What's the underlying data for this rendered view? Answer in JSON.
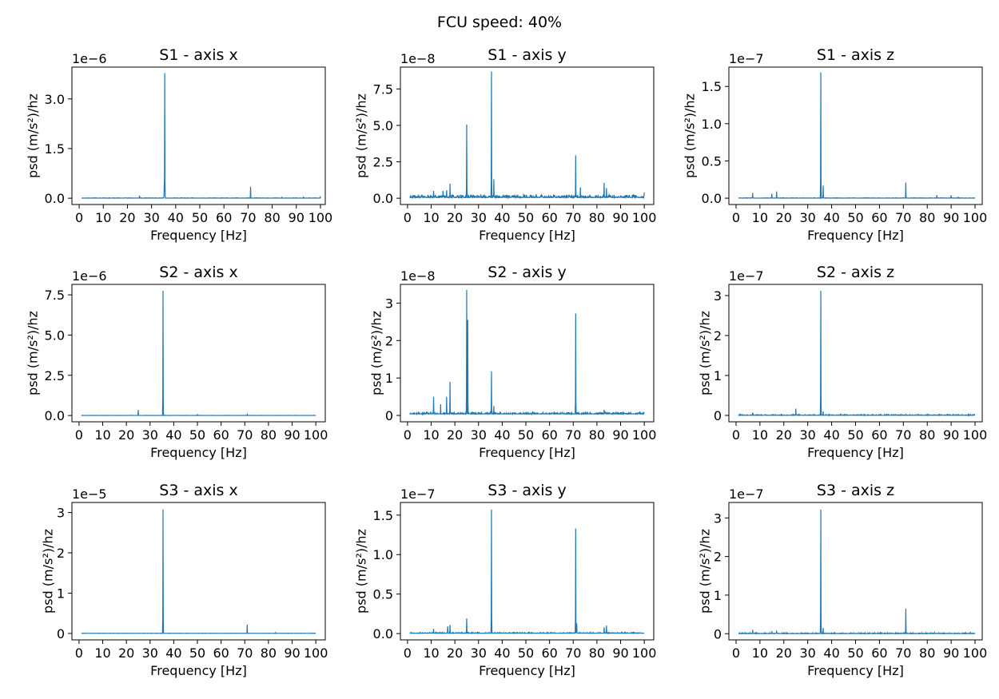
{
  "figure": {
    "suptitle": "FCU speed: 40%"
  },
  "colors": {
    "line": "#1f77b4",
    "axes": "#000000",
    "background": "#ffffff"
  },
  "chart_data": [
    {
      "type": "line",
      "title": "S1 - axis x",
      "xlabel": "Frequency [Hz]",
      "ylabel": "psd (m/s²)/hz",
      "offset_text": "1e−6",
      "xlim": [
        -3,
        102
      ],
      "ylim": [
        -0.19,
        3.96
      ],
      "x_ticks": [
        0,
        10,
        20,
        30,
        40,
        50,
        60,
        70,
        80,
        90,
        100
      ],
      "x_tick_labels": [
        "0",
        "10",
        "20",
        "30",
        "40",
        "50",
        "60",
        "70",
        "80",
        "90",
        "100"
      ],
      "y_ticks": [
        0,
        1.5,
        3.0
      ],
      "y_tick_labels": [
        "0.0",
        "1.5",
        "3.0"
      ],
      "x_range": [
        1,
        100
      ],
      "baseline": 0.003,
      "noise": 0.01,
      "peaks": [
        [
          25,
          0.08
        ],
        [
          35.5,
          3.78
        ],
        [
          35.2,
          0.35
        ],
        [
          71,
          0.35
        ],
        [
          84,
          0.04
        ],
        [
          93,
          0.03
        ],
        [
          100,
          0.06
        ]
      ]
    },
    {
      "type": "line",
      "title": "S1 - axis y",
      "xlabel": "Frequency [Hz]",
      "ylabel": "psd (m/s²)/hz",
      "offset_text": "1e−8",
      "xlim": [
        -3,
        104
      ],
      "ylim": [
        -0.43,
        9.0
      ],
      "x_ticks": [
        0,
        10,
        20,
        30,
        40,
        50,
        60,
        70,
        80,
        90,
        100
      ],
      "x_tick_labels": [
        "0",
        "10",
        "20",
        "30",
        "40",
        "50",
        "60",
        "70",
        "80",
        "90",
        "100"
      ],
      "y_ticks": [
        0,
        2.5,
        5.0,
        7.5
      ],
      "y_tick_labels": [
        "0.0",
        "2.5",
        "5.0",
        "7.5"
      ],
      "x_range": [
        1,
        100
      ],
      "baseline": 0.05,
      "noise": 0.2,
      "peaks": [
        [
          11,
          0.5
        ],
        [
          15,
          0.5
        ],
        [
          16.5,
          0.55
        ],
        [
          18,
          1.0
        ],
        [
          25,
          5.05
        ],
        [
          35.5,
          8.7
        ],
        [
          36.5,
          1.3
        ],
        [
          71,
          2.95
        ],
        [
          73,
          0.75
        ],
        [
          83,
          1.05
        ],
        [
          84,
          0.7
        ],
        [
          100,
          0.4
        ]
      ]
    },
    {
      "type": "line",
      "title": "S1 - axis z",
      "xlabel": "Frequency [Hz]",
      "ylabel": "psd (m/s²)/hz",
      "offset_text": "1e−7",
      "xlim": [
        -3,
        103
      ],
      "ylim": [
        -0.085,
        1.76
      ],
      "x_ticks": [
        0,
        10,
        20,
        30,
        40,
        50,
        60,
        70,
        80,
        90,
        100
      ],
      "x_tick_labels": [
        "0",
        "10",
        "20",
        "30",
        "40",
        "50",
        "60",
        "70",
        "80",
        "90",
        "100"
      ],
      "y_ticks": [
        0,
        0.5,
        1.0,
        1.5
      ],
      "y_tick_labels": [
        "0.0",
        "0.5",
        "1.0",
        "1.5"
      ],
      "x_range": [
        1,
        100
      ],
      "baseline": 0.001,
      "noise": 0.005,
      "peaks": [
        [
          7,
          0.07
        ],
        [
          15,
          0.06
        ],
        [
          17,
          0.09
        ],
        [
          35.5,
          1.69
        ],
        [
          36.5,
          0.17
        ],
        [
          71,
          0.21
        ],
        [
          84,
          0.04
        ],
        [
          90,
          0.04
        ],
        [
          93,
          0.02
        ]
      ]
    },
    {
      "type": "line",
      "title": "S2 - axis x",
      "xlabel": "Frequency [Hz]",
      "ylabel": "psd (m/s²)/hz",
      "offset_text": "1e−6",
      "xlim": [
        -3,
        104
      ],
      "ylim": [
        -0.39,
        8.15
      ],
      "x_ticks": [
        0,
        10,
        20,
        30,
        40,
        50,
        60,
        70,
        80,
        90,
        100
      ],
      "x_tick_labels": [
        "0",
        "10",
        "20",
        "30",
        "40",
        "50",
        "60",
        "70",
        "80",
        "90",
        "100"
      ],
      "y_ticks": [
        0,
        2.5,
        5.0,
        7.5
      ],
      "y_tick_labels": [
        "0.0",
        "2.5",
        "5.0",
        "7.5"
      ],
      "x_range": [
        1,
        100
      ],
      "baseline": 0.003,
      "noise": 0.01,
      "peaks": [
        [
          25,
          0.35
        ],
        [
          35.5,
          7.75
        ],
        [
          50,
          0.05
        ],
        [
          71,
          0.07
        ]
      ]
    },
    {
      "type": "line",
      "title": "S2 - axis y",
      "xlabel": "Frequency [Hz]",
      "ylabel": "psd (m/s²)/hz",
      "offset_text": "1e−8",
      "xlim": [
        -3,
        104
      ],
      "ylim": [
        -0.17,
        3.5
      ],
      "x_ticks": [
        0,
        10,
        20,
        30,
        40,
        50,
        60,
        70,
        80,
        90,
        100
      ],
      "x_tick_labels": [
        "0",
        "10",
        "20",
        "30",
        "40",
        "50",
        "60",
        "70",
        "80",
        "90",
        "100"
      ],
      "y_ticks": [
        0,
        1,
        2,
        3
      ],
      "y_tick_labels": [
        "0",
        "1",
        "2",
        "3"
      ],
      "x_range": [
        1,
        100
      ],
      "baseline": 0.04,
      "noise": 0.05,
      "peaks": [
        [
          11,
          0.5
        ],
        [
          14,
          0.3
        ],
        [
          16.5,
          0.5
        ],
        [
          18,
          0.9
        ],
        [
          25,
          3.35
        ],
        [
          25.5,
          2.55
        ],
        [
          35.5,
          1.18
        ],
        [
          36.5,
          0.25
        ],
        [
          71,
          2.72
        ],
        [
          83,
          0.15
        ]
      ]
    },
    {
      "type": "line",
      "title": "S2 - axis z",
      "xlabel": "Frequency [Hz]",
      "ylabel": "psd (m/s²)/hz",
      "offset_text": "1e−7",
      "xlim": [
        -3,
        103
      ],
      "ylim": [
        -0.16,
        3.28
      ],
      "x_ticks": [
        0,
        10,
        20,
        30,
        40,
        50,
        60,
        70,
        80,
        90,
        100
      ],
      "x_tick_labels": [
        "0",
        "10",
        "20",
        "30",
        "40",
        "50",
        "60",
        "70",
        "80",
        "90",
        "100"
      ],
      "y_ticks": [
        0,
        1,
        2,
        3
      ],
      "y_tick_labels": [
        "0",
        "1",
        "2",
        "3"
      ],
      "x_range": [
        1,
        100
      ],
      "baseline": 0.003,
      "noise": 0.02,
      "peaks": [
        [
          7,
          0.07
        ],
        [
          25,
          0.17
        ],
        [
          35.5,
          3.12
        ],
        [
          36.5,
          0.1
        ],
        [
          83,
          0.02
        ]
      ]
    },
    {
      "type": "line",
      "title": "S3 - axis x",
      "xlabel": "Frequency [Hz]",
      "ylabel": "psd (m/s²)/hz",
      "offset_text": "1e−5",
      "xlim": [
        -3,
        104
      ],
      "ylim": [
        -0.16,
        3.25
      ],
      "x_ticks": [
        0,
        10,
        20,
        30,
        40,
        50,
        60,
        70,
        80,
        90,
        100
      ],
      "x_tick_labels": [
        "0",
        "10",
        "20",
        "30",
        "40",
        "50",
        "60",
        "70",
        "80",
        "90",
        "100"
      ],
      "y_ticks": [
        0,
        1,
        2,
        3
      ],
      "y_tick_labels": [
        "0",
        "1",
        "2",
        "3"
      ],
      "x_range": [
        1,
        100
      ],
      "baseline": 0.002,
      "noise": 0.005,
      "peaks": [
        [
          35.5,
          3.08
        ],
        [
          71,
          0.22
        ],
        [
          83,
          0.02
        ]
      ]
    },
    {
      "type": "line",
      "title": "S3 - axis y",
      "xlabel": "Frequency [Hz]",
      "ylabel": "psd (m/s²)/hz",
      "offset_text": "1e−7",
      "xlim": [
        -3,
        104
      ],
      "ylim": [
        -0.08,
        1.66
      ],
      "x_ticks": [
        0,
        10,
        20,
        30,
        40,
        50,
        60,
        70,
        80,
        90,
        100
      ],
      "x_tick_labels": [
        "0",
        "10",
        "20",
        "30",
        "40",
        "50",
        "60",
        "70",
        "80",
        "90",
        "100"
      ],
      "y_ticks": [
        0,
        0.5,
        1.0,
        1.5
      ],
      "y_tick_labels": [
        "0.0",
        "0.5",
        "1.0",
        "1.5"
      ],
      "x_range": [
        1,
        100
      ],
      "baseline": 0.004,
      "noise": 0.01,
      "peaks": [
        [
          11,
          0.06
        ],
        [
          17,
          0.09
        ],
        [
          18,
          0.11
        ],
        [
          25,
          0.19
        ],
        [
          35.5,
          1.57
        ],
        [
          71,
          1.33
        ],
        [
          71.5,
          0.13
        ],
        [
          83,
          0.08
        ],
        [
          84,
          0.1
        ]
      ]
    },
    {
      "type": "line",
      "title": "S3 - axis z",
      "xlabel": "Frequency [Hz]",
      "ylabel": "psd (m/s²)/hz",
      "offset_text": "1e−7",
      "xlim": [
        -3,
        103
      ],
      "ylim": [
        -0.16,
        3.4
      ],
      "x_ticks": [
        0,
        10,
        20,
        30,
        40,
        50,
        60,
        70,
        80,
        90,
        100
      ],
      "x_tick_labels": [
        "0",
        "10",
        "20",
        "30",
        "40",
        "50",
        "60",
        "70",
        "80",
        "90",
        "100"
      ],
      "y_ticks": [
        0,
        1,
        2,
        3
      ],
      "y_tick_labels": [
        "0",
        "1",
        "2",
        "3"
      ],
      "x_range": [
        1,
        100
      ],
      "baseline": 0.003,
      "noise": 0.02,
      "peaks": [
        [
          7,
          0.1
        ],
        [
          15,
          0.06
        ],
        [
          17,
          0.08
        ],
        [
          35.5,
          3.22
        ],
        [
          36.5,
          0.15
        ],
        [
          71,
          0.65
        ],
        [
          83,
          0.03
        ]
      ]
    }
  ]
}
